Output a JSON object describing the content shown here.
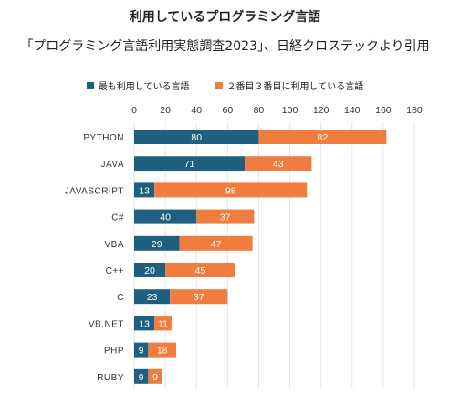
{
  "title": "利用しているプログラミング言語",
  "subtitle": "「プログラミング言語利用実態調査2023」、日経クロステックより引用",
  "colors": {
    "series1": "#1f5f80",
    "series2": "#ee7d3f",
    "gridline": "#e6e6e6"
  },
  "chart_data": {
    "type": "bar",
    "orientation": "horizontal",
    "stacked": true,
    "title": "利用しているプログラミング言語",
    "subtitle": "「プログラミング言語利用実態調査2023」、日経クロステックより引用",
    "categories": [
      "PYTHON",
      "JAVA",
      "JAVASCRIPT",
      "C#",
      "VBA",
      "C++",
      "C",
      "VB.NET",
      "PHP",
      "RUBY"
    ],
    "series": [
      {
        "name": "最も利用している言語",
        "values": [
          80,
          71,
          13,
          40,
          29,
          20,
          23,
          13,
          9,
          9
        ]
      },
      {
        "name": "２番目３番目に利用している言語",
        "values": [
          82,
          43,
          98,
          37,
          47,
          45,
          37,
          11,
          18,
          9
        ]
      }
    ],
    "xlim": [
      0,
      180
    ],
    "xticks": [
      0,
      20,
      40,
      60,
      80,
      100,
      120,
      140,
      160,
      180
    ],
    "xaxis_position": "top",
    "grid": true,
    "legend": "top"
  }
}
